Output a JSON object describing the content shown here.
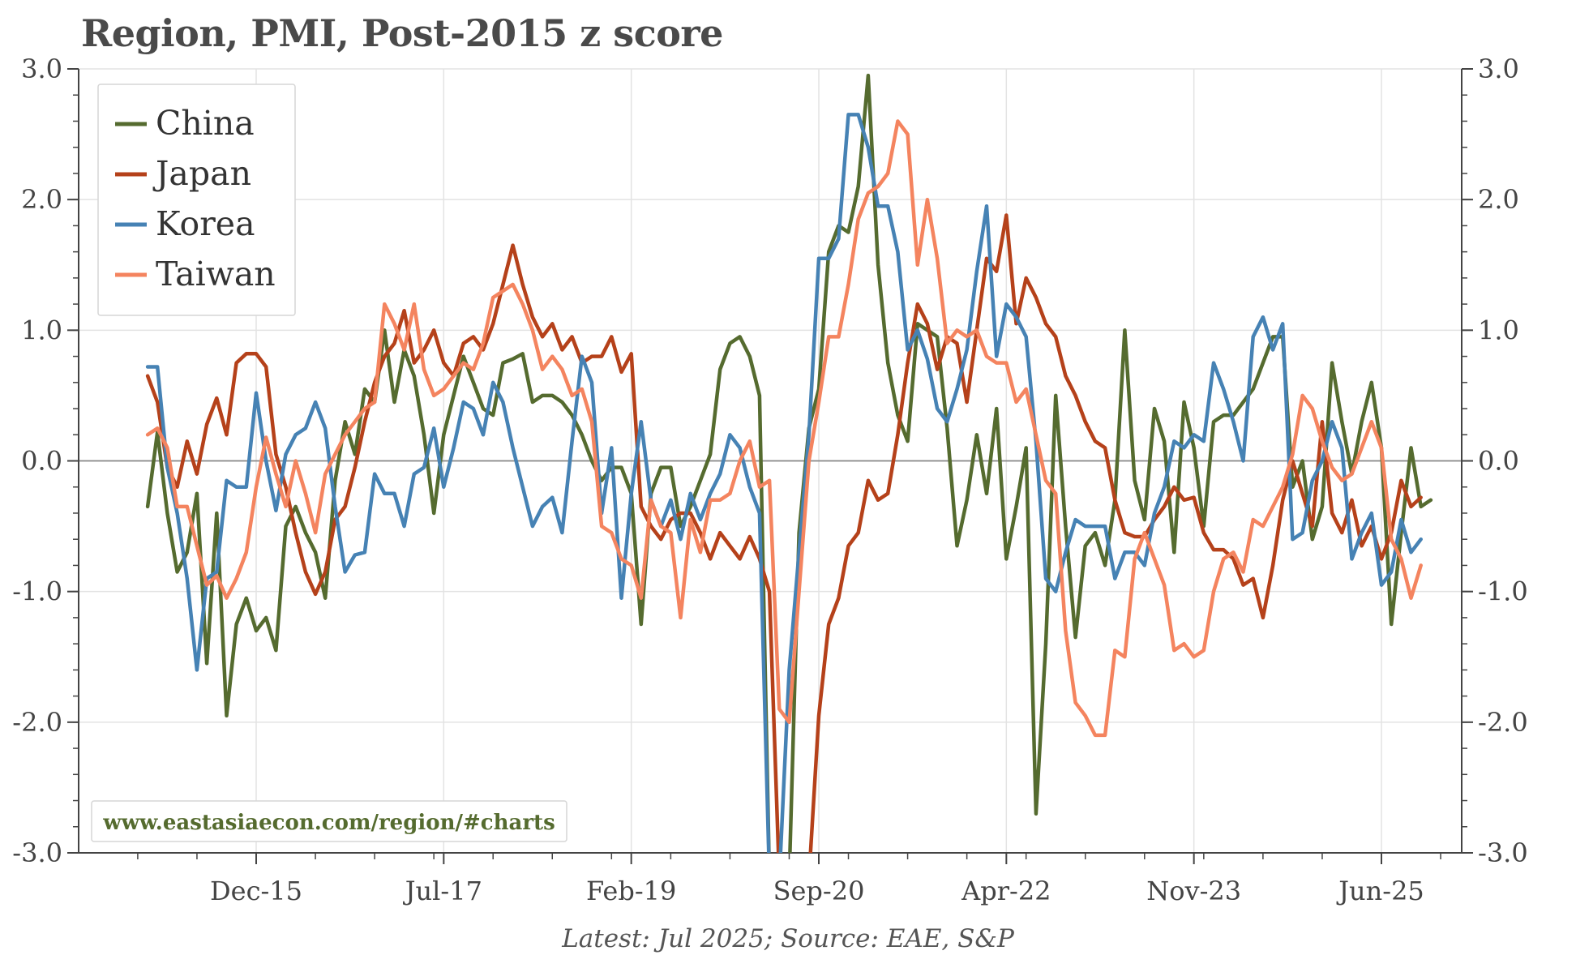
{
  "title": "Region, PMI, Post-2015 z score",
  "footer": "Latest: Jul 2025; Source: EAE, S&P",
  "watermark": "www.eastasiaecon.com/region/#charts",
  "colors": {
    "China": "#556b2f",
    "Japan": "#b5411a",
    "Korea": "#4682b4",
    "Taiwan": "#f4845f",
    "watermark": "#556b2f",
    "text": "#444444",
    "grid": "#e3e3e3",
    "zero_line": "#888888"
  },
  "chart_data": {
    "type": "line",
    "title": "Region, PMI, Post-2015 z score",
    "ylim": [
      -3.0,
      3.0
    ],
    "y_ticks": [
      "3.0",
      "2.0",
      "1.0",
      "0.0",
      "-1.0",
      "-2.0",
      "-3.0"
    ],
    "y_tick_values": [
      3,
      2,
      1,
      0,
      -1,
      -2,
      -3
    ],
    "x_tick_labels": [
      "Dec-15",
      "Jul-17",
      "Feb-19",
      "Sep-20",
      "Apr-22",
      "Nov-23",
      "Jun-25"
    ],
    "x_tick_dates": [
      "2015-12",
      "2017-07",
      "2019-02",
      "2020-09",
      "2022-04",
      "2023-11",
      "2025-06"
    ],
    "start": "2015-01",
    "end": "2025-07",
    "grid": true,
    "legend_position": "top-left",
    "series": [
      {
        "name": "China",
        "values": [
          -0.35,
          0.22,
          -0.4,
          -0.85,
          -0.7,
          -0.25,
          -1.55,
          -0.4,
          -1.95,
          -1.25,
          -1.05,
          -1.3,
          -1.2,
          -1.45,
          -0.5,
          -0.35,
          -0.55,
          -0.7,
          -1.05,
          -0.15,
          0.3,
          0.05,
          0.55,
          0.45,
          1.0,
          0.45,
          0.85,
          0.65,
          0.2,
          -0.4,
          0.2,
          0.5,
          0.8,
          0.6,
          0.4,
          0.35,
          0.75,
          0.78,
          0.82,
          0.45,
          0.5,
          0.5,
          0.45,
          0.35,
          0.2,
          0.0,
          -0.15,
          -0.05,
          -0.05,
          -0.25,
          -1.25,
          -0.25,
          -0.05,
          -0.05,
          -0.5,
          -0.35,
          -0.15,
          0.05,
          0.7,
          0.9,
          0.95,
          0.8,
          0.5,
          -3.2,
          -3.2,
          -3.2,
          -0.55,
          0.25,
          0.55,
          1.6,
          1.8,
          1.75,
          2.1,
          2.95,
          1.5,
          0.75,
          0.35,
          0.15,
          1.05,
          1.0,
          0.95,
          0.25,
          -0.65,
          -0.3,
          0.2,
          -0.25,
          0.4,
          -0.75,
          -0.35,
          0.1,
          -2.7,
          -1.4,
          0.5,
          -0.5,
          -1.35,
          -0.65,
          -0.55,
          -0.8,
          -0.3,
          1.0,
          -0.15,
          -0.45,
          0.4,
          0.15,
          -0.7,
          0.45,
          0.1,
          -0.5,
          0.3,
          0.35,
          0.35,
          0.45,
          0.55,
          0.75,
          0.95,
          0.95,
          -0.2,
          0.0,
          -0.6,
          -0.35,
          0.75,
          0.3,
          -0.1,
          0.3,
          0.6,
          0.1,
          -1.25,
          -0.55,
          0.1,
          -0.35,
          -0.3
        ]
      },
      {
        "name": "Japan",
        "values": [
          0.65,
          0.45,
          -0.05,
          -0.2,
          0.15,
          -0.1,
          0.28,
          0.48,
          0.2,
          0.75,
          0.82,
          0.82,
          0.72,
          0.05,
          -0.2,
          -0.55,
          -0.85,
          -1.02,
          -0.85,
          -0.45,
          -0.35,
          -0.05,
          0.3,
          0.6,
          0.8,
          0.9,
          1.15,
          0.75,
          0.85,
          1.0,
          0.75,
          0.65,
          0.9,
          0.95,
          0.85,
          1.05,
          1.35,
          1.65,
          1.35,
          1.1,
          0.95,
          1.05,
          0.85,
          0.95,
          0.75,
          0.8,
          0.8,
          0.95,
          0.68,
          0.82,
          -0.35,
          -0.5,
          -0.6,
          -0.45,
          -0.4,
          -0.4,
          -0.55,
          -0.75,
          -0.55,
          -0.65,
          -0.75,
          -0.58,
          -0.75,
          -1.0,
          -3.2,
          -3.2,
          -3.2,
          -3.2,
          -1.95,
          -1.25,
          -1.05,
          -0.65,
          -0.55,
          -0.15,
          -0.3,
          -0.25,
          0.2,
          0.75,
          1.2,
          1.05,
          0.7,
          0.95,
          0.9,
          0.45,
          1.0,
          1.55,
          1.45,
          1.88,
          1.05,
          1.4,
          1.25,
          1.05,
          0.95,
          0.65,
          0.5,
          0.3,
          0.15,
          0.1,
          -0.3,
          -0.55,
          -0.58,
          -0.58,
          -0.45,
          -0.35,
          -0.2,
          -0.3,
          -0.28,
          -0.55,
          -0.68,
          -0.68,
          -0.75,
          -0.95,
          -0.9,
          -1.2,
          -0.8,
          -0.3,
          0.0,
          -0.25,
          -0.5,
          0.3,
          -0.4,
          -0.55,
          -0.3,
          -0.65,
          -0.5,
          -0.75,
          -0.55,
          -0.15,
          -0.35,
          -0.28
        ]
      },
      {
        "name": "Korea",
        "values": [
          0.72,
          0.72,
          -0.05,
          -0.4,
          -0.9,
          -1.6,
          -0.9,
          -0.85,
          -0.15,
          -0.2,
          -0.2,
          0.52,
          0.0,
          -0.38,
          0.05,
          0.2,
          0.25,
          0.45,
          0.25,
          -0.35,
          -0.85,
          -0.72,
          -0.7,
          -0.1,
          -0.25,
          -0.25,
          -0.5,
          -0.1,
          -0.05,
          0.25,
          -0.2,
          0.1,
          0.45,
          0.4,
          0.2,
          0.6,
          0.45,
          0.1,
          -0.2,
          -0.5,
          -0.35,
          -0.28,
          -0.55,
          0.15,
          0.8,
          0.6,
          -0.4,
          0.1,
          -1.05,
          -0.25,
          0.3,
          -0.3,
          -0.5,
          -0.3,
          -0.6,
          -0.25,
          -0.45,
          -0.25,
          -0.1,
          0.2,
          0.1,
          -0.2,
          -0.4,
          -3.2,
          -3.2,
          -1.6,
          -0.7,
          0.2,
          1.55,
          1.55,
          1.7,
          2.65,
          2.65,
          2.4,
          1.95,
          1.95,
          1.6,
          0.85,
          1.0,
          0.78,
          0.4,
          0.3,
          0.55,
          0.85,
          1.45,
          1.95,
          0.8,
          1.2,
          1.1,
          0.95,
          0.15,
          -0.9,
          -1.0,
          -0.7,
          -0.45,
          -0.5,
          -0.5,
          -0.5,
          -0.9,
          -0.7,
          -0.7,
          -0.8,
          -0.4,
          -0.2,
          0.15,
          0.1,
          0.2,
          0.15,
          0.75,
          0.55,
          0.3,
          0.0,
          0.95,
          1.1,
          0.85,
          1.05,
          -0.6,
          -0.55,
          -0.15,
          0.0,
          0.3,
          0.1,
          -0.75,
          -0.55,
          -0.4,
          -0.95,
          -0.85,
          -0.45,
          -0.7,
          -0.6
        ]
      },
      {
        "name": "Taiwan",
        "values": [
          0.2,
          0.25,
          0.1,
          -0.35,
          -0.35,
          -0.65,
          -0.95,
          -0.88,
          -1.05,
          -0.9,
          -0.7,
          -0.2,
          0.18,
          -0.1,
          -0.35,
          0.0,
          -0.25,
          -0.55,
          -0.1,
          0.05,
          0.2,
          0.3,
          0.4,
          0.45,
          1.2,
          1.05,
          0.85,
          1.2,
          0.7,
          0.5,
          0.55,
          0.65,
          0.75,
          0.7,
          0.9,
          1.25,
          1.3,
          1.35,
          1.2,
          1.0,
          0.7,
          0.8,
          0.7,
          0.5,
          0.55,
          0.3,
          -0.5,
          -0.55,
          -0.75,
          -0.8,
          -1.05,
          -0.3,
          -0.5,
          -0.55,
          -1.2,
          -0.45,
          -0.7,
          -0.3,
          -0.3,
          -0.25,
          0.0,
          0.15,
          -0.2,
          -0.15,
          -1.9,
          -2.0,
          -1.0,
          0.0,
          0.45,
          0.95,
          0.95,
          1.35,
          1.85,
          2.05,
          2.1,
          2.2,
          2.6,
          2.5,
          1.5,
          2.0,
          1.55,
          0.9,
          1.0,
          0.95,
          1.0,
          0.8,
          0.75,
          0.75,
          0.45,
          0.55,
          0.2,
          -0.15,
          -0.25,
          -1.3,
          -1.85,
          -1.95,
          -2.1,
          -2.1,
          -1.45,
          -1.5,
          -0.75,
          -0.55,
          -0.75,
          -0.95,
          -1.45,
          -1.4,
          -1.5,
          -1.45,
          -1.0,
          -0.75,
          -0.7,
          -0.85,
          -0.45,
          -0.5,
          -0.35,
          -0.2,
          0.05,
          0.5,
          0.4,
          0.15,
          -0.05,
          -0.15,
          -0.1,
          0.1,
          0.3,
          0.1,
          -0.6,
          -0.75,
          -1.05,
          -0.8
        ]
      }
    ]
  }
}
